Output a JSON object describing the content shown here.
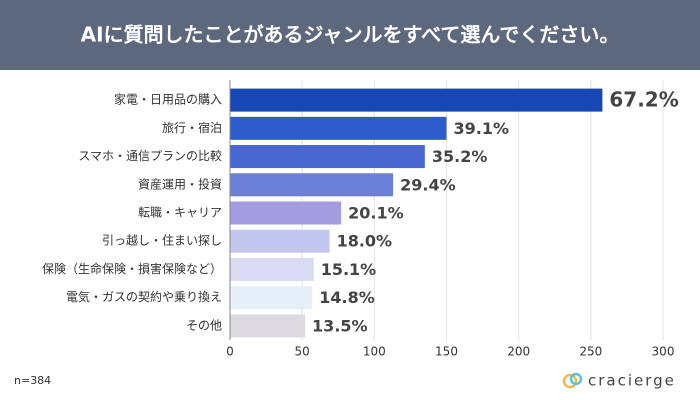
{
  "chart_data": {
    "type": "bar",
    "orientation": "horizontal",
    "title": "AIに質問したことがあるジャンルをすべて選んでください。",
    "categories": [
      "家電・日用品の購入",
      "旅行・宿泊",
      "スマホ・通信プランの比較",
      "資産運用・投資",
      "転職・キャリア",
      "引っ越し・住まい探し",
      "保険（生命保険・損害保険など）",
      "電気・ガスの契約や乗り換え",
      "その他"
    ],
    "values": [
      258,
      150,
      135,
      113,
      77,
      69,
      58,
      57,
      52
    ],
    "value_labels": [
      "67.2%",
      "39.1%",
      "35.2%",
      "29.4%",
      "20.1%",
      "18.0%",
      "15.1%",
      "14.8%",
      "13.5%"
    ],
    "colors": [
      "#1746b5",
      "#2d5ccd",
      "#4868cf",
      "#6c7fd6",
      "#a49ce0",
      "#c3c6ee",
      "#d9dbf2",
      "#e5eef9",
      "#dcdae0"
    ],
    "xlim": [
      0,
      300
    ],
    "xticks": [
      0,
      50,
      100,
      150,
      200,
      250,
      300
    ],
    "grid": true,
    "note": "n=384",
    "brand": "cracierge"
  }
}
